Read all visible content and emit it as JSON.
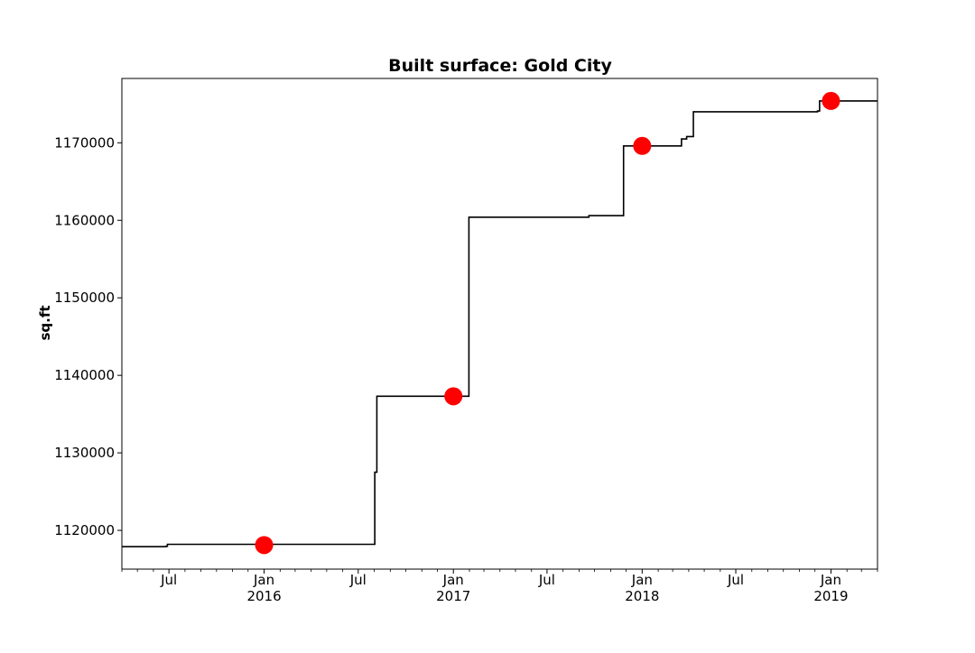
{
  "chart_data": {
    "type": "line",
    "title": "Built surface: Gold City",
    "xlabel": "",
    "ylabel": "sq.ft",
    "xlim": [
      "2015-04-01",
      "2019-04-01"
    ],
    "ylim": [
      1115000,
      1178300
    ],
    "grid": false,
    "legend": "none",
    "y_ticks": [
      1120000,
      1130000,
      1140000,
      1150000,
      1160000,
      1170000
    ],
    "x_major_ticks": [
      {
        "date": "2015-07-01",
        "label": "Jul",
        "year": ""
      },
      {
        "date": "2016-01-01",
        "label": "Jan",
        "year": "2016"
      },
      {
        "date": "2016-07-01",
        "label": "Jul",
        "year": ""
      },
      {
        "date": "2017-01-01",
        "label": "Jan",
        "year": "2017"
      },
      {
        "date": "2017-07-01",
        "label": "Jul",
        "year": ""
      },
      {
        "date": "2018-01-01",
        "label": "Jan",
        "year": "2018"
      },
      {
        "date": "2018-07-01",
        "label": "Jul",
        "year": ""
      },
      {
        "date": "2019-01-01",
        "label": "Jan",
        "year": "2019"
      }
    ],
    "x_minor_ticks": [
      "2015-04-01",
      "2015-05-01",
      "2015-06-01",
      "2015-08-01",
      "2015-09-01",
      "2015-10-01",
      "2015-11-01",
      "2015-12-01",
      "2016-02-01",
      "2016-03-01",
      "2016-04-01",
      "2016-05-01",
      "2016-06-01",
      "2016-08-01",
      "2016-09-01",
      "2016-10-01",
      "2016-11-01",
      "2016-12-01",
      "2017-02-01",
      "2017-03-01",
      "2017-04-01",
      "2017-05-01",
      "2017-06-01",
      "2017-08-01",
      "2017-09-01",
      "2017-10-01",
      "2017-11-01",
      "2017-12-01",
      "2018-02-01",
      "2018-03-01",
      "2018-04-01",
      "2018-05-01",
      "2018-06-01",
      "2018-08-01",
      "2018-09-01",
      "2018-10-01",
      "2018-11-01",
      "2018-12-01",
      "2019-02-01",
      "2019-03-01",
      "2019-04-01"
    ],
    "series": [
      {
        "kind": "step",
        "color": "#000000",
        "points": [
          {
            "x": "2015-04-01",
            "y": 1117900
          },
          {
            "x": "2015-06-25",
            "y": 1117950
          },
          {
            "x": "2015-06-28",
            "y": 1118200
          },
          {
            "x": "2016-08-02",
            "y": 1127500
          },
          {
            "x": "2016-08-06",
            "y": 1137300
          },
          {
            "x": "2017-01-31",
            "y": 1160400
          },
          {
            "x": "2017-09-20",
            "y": 1160600
          },
          {
            "x": "2017-11-26",
            "y": 1169600
          },
          {
            "x": "2018-03-18",
            "y": 1170500
          },
          {
            "x": "2018-03-28",
            "y": 1170800
          },
          {
            "x": "2018-04-10",
            "y": 1174000
          },
          {
            "x": "2018-12-06",
            "y": 1174100
          },
          {
            "x": "2018-12-10",
            "y": 1175400
          },
          {
            "x": "2019-04-01",
            "y": 1175400
          }
        ]
      },
      {
        "kind": "scatter",
        "color": "#ff0000",
        "points": [
          {
            "x": "2016-01-01",
            "y": 1118100
          },
          {
            "x": "2017-01-01",
            "y": 1137300
          },
          {
            "x": "2018-01-01",
            "y": 1169600
          },
          {
            "x": "2019-01-01",
            "y": 1175400
          }
        ]
      }
    ]
  }
}
